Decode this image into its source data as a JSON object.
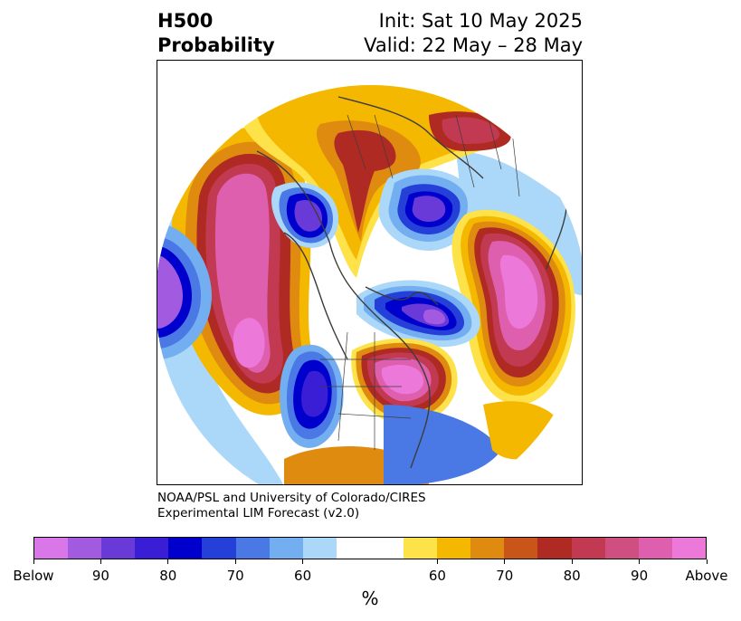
{
  "header": {
    "title_line1": "H500",
    "title_line2": "Probability",
    "init_text": "Init: Sat 10 May 2025",
    "valid_text": "Valid: 22 May – 28 May"
  },
  "credit": {
    "line1": "NOAA/PSL and University of Colorado/CIRES",
    "line2": "Experimental LIM Forecast (v2.0)"
  },
  "colorbar": {
    "colors": [
      "#d977e8",
      "#a25ae0",
      "#6a3ad9",
      "#3a1ed6",
      "#0000cd",
      "#2540d8",
      "#4a78e4",
      "#72aef0",
      "#abd8f9",
      "#ffffff",
      "#ffffff",
      "#fde24a",
      "#f5b800",
      "#df8b10",
      "#c95618",
      "#b02a24",
      "#c23a52",
      "#cf5080",
      "#de5fae",
      "#ec78da"
    ],
    "tick_labels": [
      "Below",
      "90",
      "80",
      "70",
      "60",
      "60",
      "70",
      "80",
      "90",
      "Above"
    ],
    "unit": "%"
  },
  "map": {
    "projection": "north-polar stereographic",
    "colors": {
      "above_weak": "#fde24a",
      "above_60": "#f5b800",
      "above_70": "#df8b10",
      "above_75": "#c95618",
      "above_80": "#b02a24",
      "above_85": "#c23a52",
      "above_90": "#de5fae",
      "above_max": "#ec78da",
      "below_weak": "#abd8f9",
      "below_60": "#72aef0",
      "below_70": "#4a78e4",
      "below_80": "#0000cd",
      "below_90": "#6a3ad9",
      "below_max": "#a25ae0"
    }
  }
}
